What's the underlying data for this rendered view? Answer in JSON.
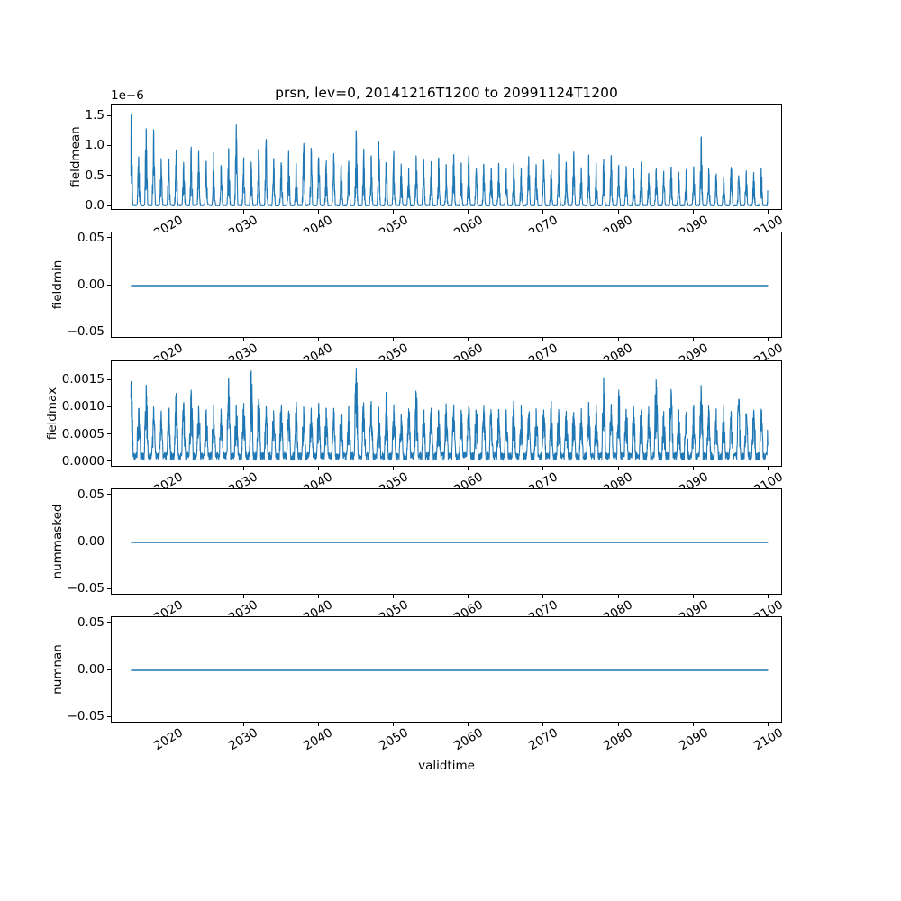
{
  "figure": {
    "title": "prsn, lev=0, 20141216T1200 to 20991124T1200",
    "xlabel": "validtime",
    "background": "#ffffff",
    "line_color": "#1f77b4",
    "text_color": "#000000"
  },
  "chart_data": {
    "type": "line",
    "title": "prsn, lev=0, 20141216T1200 to 20991124T1200",
    "xlabel": "validtime",
    "x_start": 2014.96,
    "x_end": 2099.9,
    "xlim": [
      2012.4,
      2101.9
    ],
    "xticks": [
      2020,
      2030,
      2040,
      2050,
      2060,
      2070,
      2080,
      2090,
      2100
    ],
    "line_color": "#1f77b4",
    "grid": false,
    "legend": false,
    "seed": 20141216,
    "samples_per_year": 40,
    "peak_start_year": 2015,
    "subplots": [
      {
        "name": "fieldmean",
        "ylabel": "fieldmean",
        "kind": "seasonal",
        "value_scale": "1e-6",
        "offset_text": "1e−6",
        "ylim": [
          -0.075,
          1.695
        ],
        "yticks": [
          {
            "v": 0.0,
            "label": "0.0"
          },
          {
            "v": 0.5,
            "label": "0.5"
          },
          {
            "v": 1.0,
            "label": "1.0"
          },
          {
            "v": 1.5,
            "label": "1.5"
          }
        ],
        "sharpness": 2,
        "floor": 0.15,
        "baseline": 0.03,
        "annual_peaks": [
          1.55,
          0.85,
          1.35,
          1.33,
          0.78,
          0.82,
          0.95,
          0.72,
          0.98,
          0.92,
          0.75,
          0.88,
          0.7,
          0.95,
          1.37,
          0.8,
          0.72,
          0.95,
          1.2,
          0.85,
          0.78,
          0.9,
          0.7,
          1.05,
          0.95,
          0.85,
          0.75,
          0.9,
          0.7,
          0.78,
          1.25,
          0.95,
          0.85,
          1.1,
          0.75,
          0.9,
          0.7,
          0.65,
          0.85,
          0.75,
          0.72,
          0.8,
          0.68,
          0.85,
          0.75,
          0.86,
          0.62,
          0.7,
          0.65,
          0.75,
          0.6,
          0.72,
          0.65,
          0.85,
          0.7,
          0.78,
          0.62,
          0.85,
          0.75,
          0.88,
          0.65,
          0.85,
          0.72,
          0.8,
          0.85,
          0.7,
          0.65,
          0.6,
          0.72,
          0.55,
          0.62,
          0.58,
          0.65,
          0.55,
          0.6,
          0.7,
          1.18,
          0.62,
          0.55,
          0.48,
          0.68,
          0.52,
          0.6,
          0.55,
          0.65,
          0.6
        ]
      },
      {
        "name": "fieldmin",
        "ylabel": "fieldmin",
        "kind": "flat",
        "flat_value": 0.0,
        "ylim": [
          -0.0565,
          0.0565
        ],
        "yticks": [
          {
            "v": -0.05,
            "label": "−0.05"
          },
          {
            "v": 0.0,
            "label": "0.00"
          },
          {
            "v": 0.05,
            "label": "0.05"
          }
        ]
      },
      {
        "name": "fieldmax",
        "ylabel": "fieldmax",
        "kind": "seasonal",
        "value_scale": "1e-3",
        "ylim": [
          -0.1,
          1.85
        ],
        "yticks": [
          {
            "v": 0.0,
            "label": "0.0000"
          },
          {
            "v": 0.5,
            "label": "0.0005"
          },
          {
            "v": 1.0,
            "label": "0.0010"
          },
          {
            "v": 1.5,
            "label": "0.0015"
          }
        ],
        "sharpness": 0.7,
        "floor": 0.25,
        "baseline": 0.18,
        "annual_peaks": [
          1.45,
          0.85,
          1.3,
          0.95,
          0.85,
          0.9,
          1.22,
          1.05,
          1.28,
          0.92,
          0.85,
          0.95,
          0.88,
          1.5,
          0.95,
          1.0,
          1.65,
          1.15,
          0.92,
          0.85,
          0.95,
          0.88,
          1.0,
          0.9,
          0.85,
          0.95,
          0.88,
          0.92,
          0.85,
          0.9,
          1.6,
          0.95,
          1.05,
          0.9,
          1.2,
          0.95,
          0.85,
          0.9,
          1.22,
          0.88,
          0.92,
          0.85,
          0.95,
          0.9,
          0.85,
          0.92,
          0.88,
          0.95,
          0.85,
          0.9,
          0.85,
          0.95,
          0.9,
          0.85,
          0.92,
          0.88,
          0.95,
          0.9,
          0.85,
          0.92,
          0.88,
          1.0,
          0.9,
          1.5,
          0.95,
          1.3,
          0.88,
          0.92,
          0.85,
          0.9,
          1.48,
          0.88,
          1.3,
          0.92,
          0.85,
          0.9,
          1.35,
          0.88,
          0.85,
          0.9,
          0.85,
          1.15,
          0.88,
          0.85,
          0.92,
          0.8
        ]
      },
      {
        "name": "nummasked",
        "ylabel": "nummasked",
        "kind": "flat",
        "flat_value": 0.0,
        "ylim": [
          -0.0565,
          0.0565
        ],
        "yticks": [
          {
            "v": -0.05,
            "label": "−0.05"
          },
          {
            "v": 0.0,
            "label": "0.00"
          },
          {
            "v": 0.05,
            "label": "0.05"
          }
        ]
      },
      {
        "name": "numnan",
        "ylabel": "numnan",
        "kind": "flat",
        "flat_value": 0.0,
        "ylim": [
          -0.0565,
          0.0565
        ],
        "yticks": [
          {
            "v": -0.05,
            "label": "−0.05"
          },
          {
            "v": 0.0,
            "label": "0.00"
          },
          {
            "v": 0.05,
            "label": "0.05"
          }
        ]
      }
    ]
  }
}
